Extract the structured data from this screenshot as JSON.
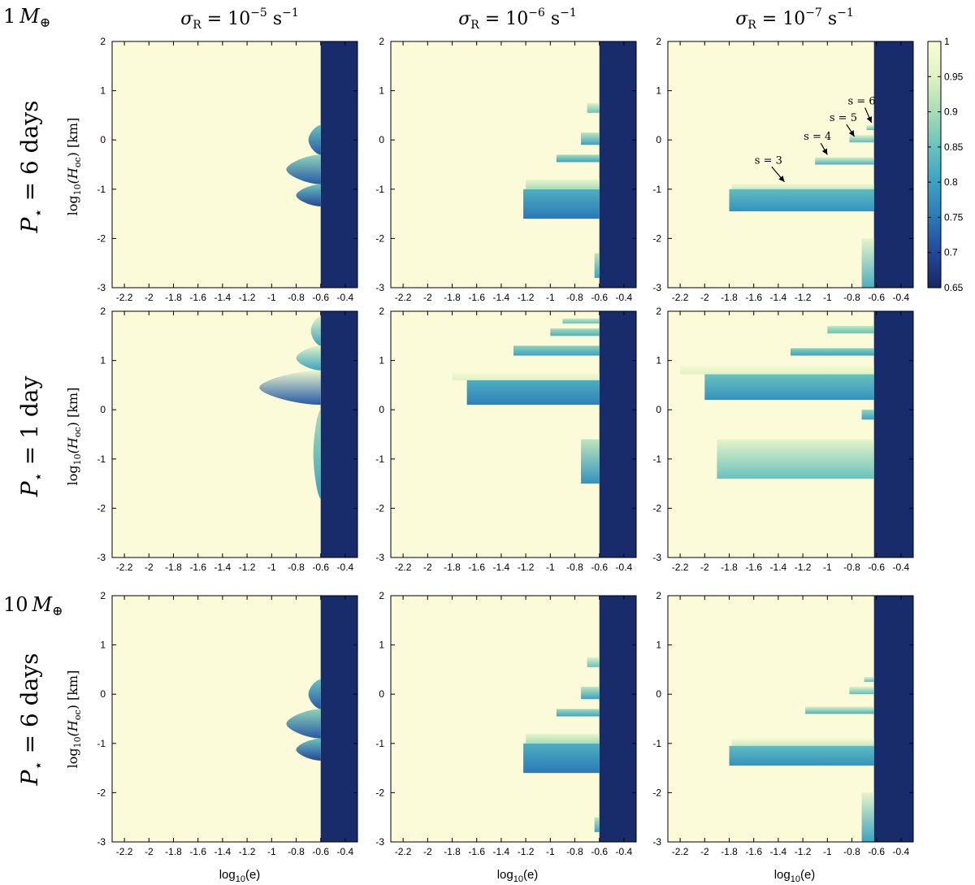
{
  "columns": [
    {
      "label_base": "σ",
      "label_sub": "R",
      "label_eq": " = 10",
      "label_exp": "−5",
      "label_unit": " s",
      "label_unit_exp": "−1"
    },
    {
      "label_base": "σ",
      "label_sub": "R",
      "label_eq": " = 10",
      "label_exp": "−6",
      "label_unit": " s",
      "label_unit_exp": "−1"
    },
    {
      "label_base": "σ",
      "label_sub": "R",
      "label_eq": " = 10",
      "label_exp": "−7",
      "label_unit": " s",
      "label_unit_exp": "−1"
    }
  ],
  "rows": [
    {
      "mass_num": "1",
      "mass_sym": "M",
      "mass_sub": "⊕",
      "period_sym": "P",
      "period_sub": "⋆",
      "period_text": " = 6 days",
      "ylabel_pre": "log",
      "ylabel_sub10": "10",
      "ylabel_mid": "(H",
      "ylabel_sub": "oc",
      "ylabel_post": ")  [km]"
    },
    {
      "mass_num": "",
      "mass_sym": "",
      "mass_sub": "",
      "period_sym": "P",
      "period_sub": "⋆",
      "period_text": " = 1 day",
      "ylabel_pre": "log",
      "ylabel_sub10": "10",
      "ylabel_mid": "(H",
      "ylabel_sub": "oc",
      "ylabel_post": ")  [km]"
    },
    {
      "mass_num": "10",
      "mass_sym": "M",
      "mass_sub": "⊕",
      "period_sym": "P",
      "period_sub": "⋆",
      "period_text": " = 6 days",
      "ylabel_pre": "log",
      "ylabel_sub10": "10",
      "ylabel_mid": "(H",
      "ylabel_sub": "oc",
      "ylabel_post": ")  [km]"
    }
  ],
  "xlabel": {
    "pre": "log",
    "sub": "10",
    "post": "(e)"
  },
  "colors": {
    "light": "#fbfbd9",
    "dark": "#1a2d6e",
    "mid": "#3aa3c2"
  },
  "chart_data": {
    "type": "heatmap",
    "panel_grid": [
      3,
      3
    ],
    "xlim": [
      -2.3,
      -0.3
    ],
    "ylim": [
      -3,
      2
    ],
    "x_ticks": [
      "-2.2",
      "-2",
      "-1.8",
      "-1.6",
      "-1.4",
      "-1.2",
      "-1",
      "-0.8",
      "-0.6",
      "-0.4"
    ],
    "x_tick_values": [
      -2.2,
      -2.0,
      -1.8,
      -1.6,
      -1.4,
      -1.2,
      -1.0,
      -0.8,
      -0.6,
      -0.4
    ],
    "y_ticks": [
      "-3",
      "-2",
      "-1",
      "0",
      "1",
      "2"
    ],
    "y_tick_values": [
      -3,
      -2,
      -1,
      0,
      1,
      2
    ],
    "colorbar": {
      "range": [
        0.65,
        1
      ],
      "ticks": [
        "1",
        "0.95",
        "0.9",
        "0.85",
        "0.8",
        "0.75",
        "0.7",
        "0.65"
      ],
      "tick_values": [
        1,
        0.95,
        0.9,
        0.85,
        0.8,
        0.75,
        0.7,
        0.65
      ],
      "stops": [
        {
          "v": 0.65,
          "color": "#172866"
        },
        {
          "v": 0.7,
          "color": "#23479a"
        },
        {
          "v": 0.75,
          "color": "#2b79b7"
        },
        {
          "v": 0.8,
          "color": "#3aa3c2"
        },
        {
          "v": 0.85,
          "color": "#69c2bd"
        },
        {
          "v": 0.9,
          "color": "#a8dcb6"
        },
        {
          "v": 0.95,
          "color": "#e0f2c3"
        },
        {
          "v": 1.0,
          "color": "#fbfbd9"
        }
      ]
    },
    "annotations": [
      {
        "panel": 2,
        "text": "s = 3",
        "label_x": -1.48,
        "label_y": -0.48,
        "arrow_x": -1.35,
        "arrow_y": -0.85
      },
      {
        "panel": 2,
        "text": "s = 4",
        "label_x": -1.08,
        "label_y": 0.0,
        "arrow_x": -1.0,
        "arrow_y": -0.3
      },
      {
        "panel": 2,
        "text": "s = 5",
        "label_x": -0.87,
        "label_y": 0.38,
        "arrow_x": -0.78,
        "arrow_y": 0.07
      },
      {
        "panel": 2,
        "text": "s = 6",
        "label_x": -0.72,
        "label_y": 0.72,
        "arrow_x": -0.64,
        "arrow_y": 0.35
      }
    ],
    "panels": [
      {
        "id": 0,
        "edge_x": -0.6,
        "edge_ymin": -3,
        "edge_ymax": 2,
        "bands": [],
        "lobes": [
          {
            "y0": -0.9,
            "y1": -0.3,
            "x_tip": -0.88,
            "v_top": 0.88,
            "v_bot": 0.72
          },
          {
            "y0": -1.35,
            "y1": -0.9,
            "x_tip": -0.8,
            "v_top": 0.85,
            "v_bot": 0.7
          },
          {
            "y0": -0.3,
            "y1": 0.3,
            "x_tip": -0.7,
            "v_top": 0.85,
            "v_bot": 0.72
          }
        ]
      },
      {
        "id": 1,
        "edge_x": -0.6,
        "edge_ymin": -3,
        "edge_ymax": 2,
        "bands": [
          {
            "y0": -1.6,
            "y1": -1.0,
            "x0": -1.22,
            "v_top": 0.82,
            "v_bot": 0.75
          },
          {
            "y0": -1.0,
            "y1": -0.8,
            "x0": -1.2,
            "v_top": 0.97,
            "v_bot": 0.9
          },
          {
            "y0": -0.45,
            "y1": -0.3,
            "x0": -0.95,
            "v_top": 0.9,
            "v_bot": 0.8
          },
          {
            "y0": -0.1,
            "y1": 0.15,
            "x0": -0.75,
            "v_top": 0.92,
            "v_bot": 0.8
          },
          {
            "y0": 0.55,
            "y1": 0.75,
            "x0": -0.7,
            "v_top": 0.95,
            "v_bot": 0.85
          },
          {
            "y0": -2.8,
            "y1": -2.3,
            "x0": -0.64,
            "v_top": 0.92,
            "v_bot": 0.8
          }
        ],
        "lobes": []
      },
      {
        "id": 2,
        "edge_x": -0.62,
        "edge_ymin": -3,
        "edge_ymax": 2,
        "bands": [
          {
            "y0": -1.0,
            "y1": -0.88,
            "x0": -1.78,
            "v_top": 0.99,
            "v_bot": 0.93
          },
          {
            "y0": -1.45,
            "y1": -1.0,
            "x0": -1.8,
            "v_top": 0.84,
            "v_bot": 0.78
          },
          {
            "y0": -0.5,
            "y1": -0.35,
            "x0": -1.1,
            "v_top": 0.95,
            "v_bot": 0.82
          },
          {
            "y0": -0.05,
            "y1": 0.1,
            "x0": -0.82,
            "v_top": 0.95,
            "v_bot": 0.84
          },
          {
            "y0": 0.2,
            "y1": 0.3,
            "x0": -0.68,
            "v_top": 0.95,
            "v_bot": 0.84
          },
          {
            "y0": -3.0,
            "y1": -2.0,
            "x0": -0.72,
            "v_top": 0.96,
            "v_bot": 0.82
          }
        ],
        "lobes": []
      },
      {
        "id": 3,
        "edge_x": -0.6,
        "edge_ymin": -3,
        "edge_ymax": 2,
        "bands": [],
        "lobes": [
          {
            "y0": 0.1,
            "y1": 0.8,
            "x_tip": -1.1,
            "v_top": 0.97,
            "v_bot": 0.72
          },
          {
            "y0": 0.8,
            "y1": 1.3,
            "x_tip": -0.8,
            "v_top": 0.95,
            "v_bot": 0.8
          },
          {
            "y0": 1.3,
            "y1": 1.9,
            "x_tip": -0.68,
            "v_top": 0.95,
            "v_bot": 0.8
          },
          {
            "y0": -1.8,
            "y1": 0.0,
            "x_tip": -0.66,
            "v_top": 0.9,
            "v_bot": 0.8
          }
        ]
      },
      {
        "id": 4,
        "edge_x": -0.6,
        "edge_ymin": -3,
        "edge_ymax": 2,
        "bands": [
          {
            "y0": 0.6,
            "y1": 0.75,
            "x0": -1.8,
            "v_top": 0.99,
            "v_bot": 0.95
          },
          {
            "y0": 0.1,
            "y1": 0.6,
            "x0": -1.68,
            "v_top": 0.82,
            "v_bot": 0.76
          },
          {
            "y0": 1.1,
            "y1": 1.3,
            "x0": -1.3,
            "v_top": 0.88,
            "v_bot": 0.8
          },
          {
            "y0": 1.5,
            "y1": 1.65,
            "x0": -1.0,
            "v_top": 0.9,
            "v_bot": 0.82
          },
          {
            "y0": 1.75,
            "y1": 1.85,
            "x0": -0.9,
            "v_top": 0.92,
            "v_bot": 0.85
          },
          {
            "y0": -1.5,
            "y1": -0.6,
            "x0": -0.75,
            "v_top": 0.92,
            "v_bot": 0.78
          }
        ],
        "lobes": []
      },
      {
        "id": 5,
        "edge_x": -0.62,
        "edge_ymin": -3,
        "edge_ymax": 2,
        "bands": [
          {
            "y0": 0.72,
            "y1": 0.9,
            "x0": -2.2,
            "v_top": 0.99,
            "v_bot": 0.95
          },
          {
            "y0": 0.2,
            "y1": 0.72,
            "x0": -2.0,
            "v_top": 0.85,
            "v_bot": 0.78
          },
          {
            "y0": 1.1,
            "y1": 1.25,
            "x0": -1.3,
            "v_top": 0.88,
            "v_bot": 0.8
          },
          {
            "y0": 1.55,
            "y1": 1.7,
            "x0": -1.0,
            "v_top": 0.92,
            "v_bot": 0.85
          },
          {
            "y0": -1.4,
            "y1": -0.6,
            "x0": -1.9,
            "v_top": 0.96,
            "v_bot": 0.85
          },
          {
            "y0": -0.2,
            "y1": 0.0,
            "x0": -0.72,
            "v_top": 0.88,
            "v_bot": 0.8
          }
        ],
        "lobes": []
      },
      {
        "id": 6,
        "edge_x": -0.6,
        "edge_ymin": -3,
        "edge_ymax": 2,
        "bands": [],
        "lobes": [
          {
            "y0": -0.9,
            "y1": -0.3,
            "x_tip": -0.88,
            "v_top": 0.88,
            "v_bot": 0.72
          },
          {
            "y0": -1.35,
            "y1": -0.9,
            "x_tip": -0.8,
            "v_top": 0.85,
            "v_bot": 0.7
          },
          {
            "y0": -0.3,
            "y1": 0.3,
            "x_tip": -0.7,
            "v_top": 0.85,
            "v_bot": 0.72
          }
        ]
      },
      {
        "id": 7,
        "edge_x": -0.6,
        "edge_ymin": -3,
        "edge_ymax": 2,
        "bands": [
          {
            "y0": -1.6,
            "y1": -1.0,
            "x0": -1.22,
            "v_top": 0.82,
            "v_bot": 0.75
          },
          {
            "y0": -1.0,
            "y1": -0.8,
            "x0": -1.2,
            "v_top": 0.97,
            "v_bot": 0.9
          },
          {
            "y0": -0.45,
            "y1": -0.3,
            "x0": -0.95,
            "v_top": 0.9,
            "v_bot": 0.8
          },
          {
            "y0": -0.1,
            "y1": 0.15,
            "x0": -0.75,
            "v_top": 0.92,
            "v_bot": 0.8
          },
          {
            "y0": 0.55,
            "y1": 0.75,
            "x0": -0.7,
            "v_top": 0.95,
            "v_bot": 0.85
          },
          {
            "y0": -2.8,
            "y1": -2.5,
            "x0": -0.64,
            "v_top": 0.92,
            "v_bot": 0.8
          }
        ],
        "lobes": []
      },
      {
        "id": 8,
        "edge_x": -0.62,
        "edge_ymin": -3,
        "edge_ymax": 2,
        "bands": [
          {
            "y0": -1.05,
            "y1": -0.9,
            "x0": -1.78,
            "v_top": 0.99,
            "v_bot": 0.93
          },
          {
            "y0": -1.45,
            "y1": -1.05,
            "x0": -1.8,
            "v_top": 0.84,
            "v_bot": 0.78
          },
          {
            "y0": -0.4,
            "y1": -0.25,
            "x0": -1.18,
            "v_top": 0.95,
            "v_bot": 0.82
          },
          {
            "y0": 0.0,
            "y1": 0.15,
            "x0": -0.82,
            "v_top": 0.95,
            "v_bot": 0.84
          },
          {
            "y0": 0.25,
            "y1": 0.35,
            "x0": -0.7,
            "v_top": 0.95,
            "v_bot": 0.84
          },
          {
            "y0": -3.0,
            "y1": -2.0,
            "x0": -0.72,
            "v_top": 0.96,
            "v_bot": 0.8
          }
        ],
        "lobes": []
      }
    ]
  }
}
